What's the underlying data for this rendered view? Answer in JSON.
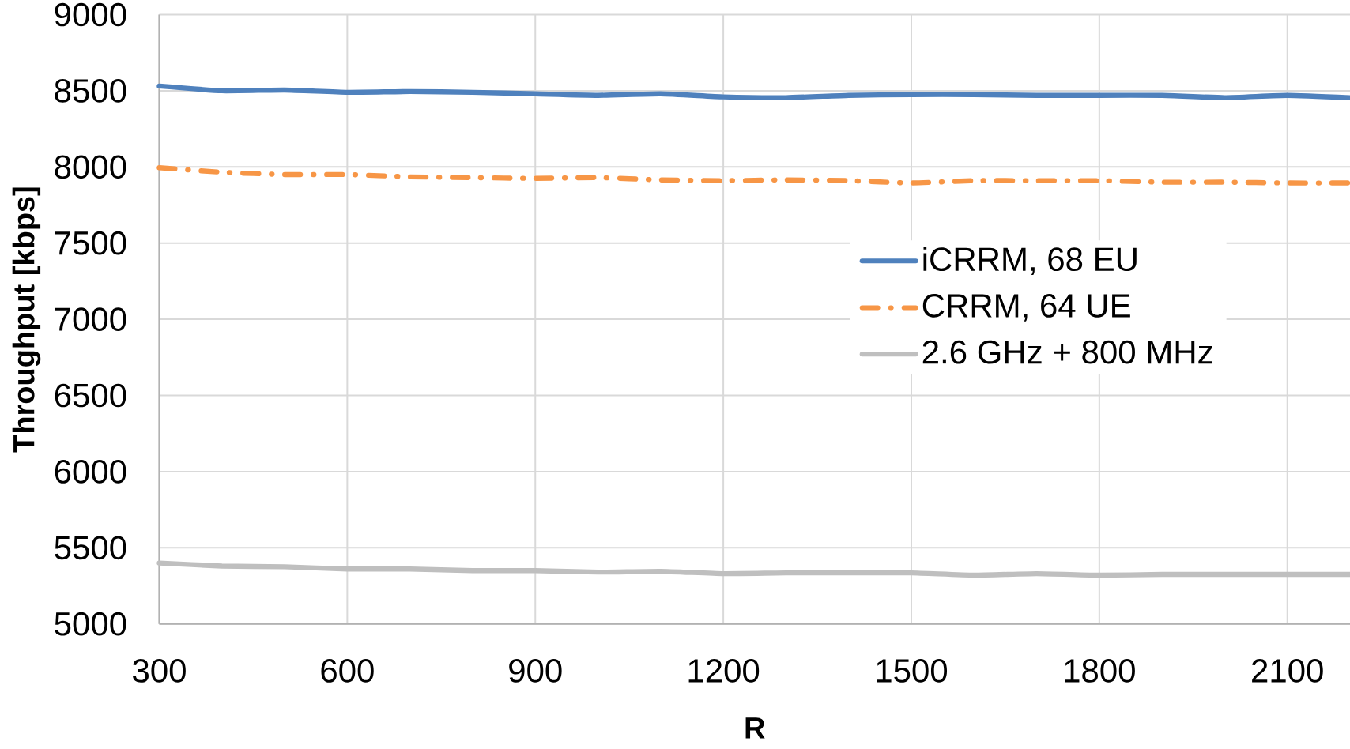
{
  "chart_data": {
    "type": "line",
    "xlabel": "R",
    "ylabel": "Throughput [kbps]",
    "x": [
      300,
      400,
      500,
      600,
      700,
      800,
      900,
      1000,
      1100,
      1200,
      1300,
      1400,
      1500,
      1600,
      1700,
      1800,
      1900,
      2000,
      2100,
      2200
    ],
    "series": [
      {
        "name": "iCRRM, 68 EU",
        "color": "#4f81bd",
        "line_style": "solid",
        "values": [
          8531,
          8500,
          8505,
          8490,
          8495,
          8490,
          8480,
          8470,
          8480,
          8460,
          8455,
          8470,
          8475,
          8475,
          8470,
          8470,
          8470,
          8455,
          8470,
          8455
        ]
      },
      {
        "name": "CRRM, 64 UE",
        "color": "#f79646",
        "line_style": "dashdot",
        "values": [
          7995,
          7965,
          7950,
          7950,
          7935,
          7930,
          7925,
          7930,
          7915,
          7910,
          7915,
          7910,
          7895,
          7910,
          7910,
          7910,
          7900,
          7900,
          7895,
          7895
        ]
      },
      {
        "name": "2.6 GHz + 800 MHz",
        "color": "#bfbfbf",
        "line_style": "solid",
        "values": [
          5400,
          5380,
          5375,
          5360,
          5360,
          5350,
          5350,
          5340,
          5345,
          5330,
          5335,
          5335,
          5335,
          5320,
          5330,
          5320,
          5325,
          5325,
          5325,
          5325
        ]
      }
    ],
    "xlim": [
      300,
      2200
    ],
    "xticks": [
      300,
      600,
      900,
      1200,
      1500,
      1800,
      2100
    ],
    "ylim": [
      5000,
      9000
    ],
    "yticks": [
      5000,
      5500,
      6000,
      6500,
      7000,
      7500,
      8000,
      8500,
      9000
    ],
    "grid": true,
    "legend": "right",
    "marker": "none"
  }
}
